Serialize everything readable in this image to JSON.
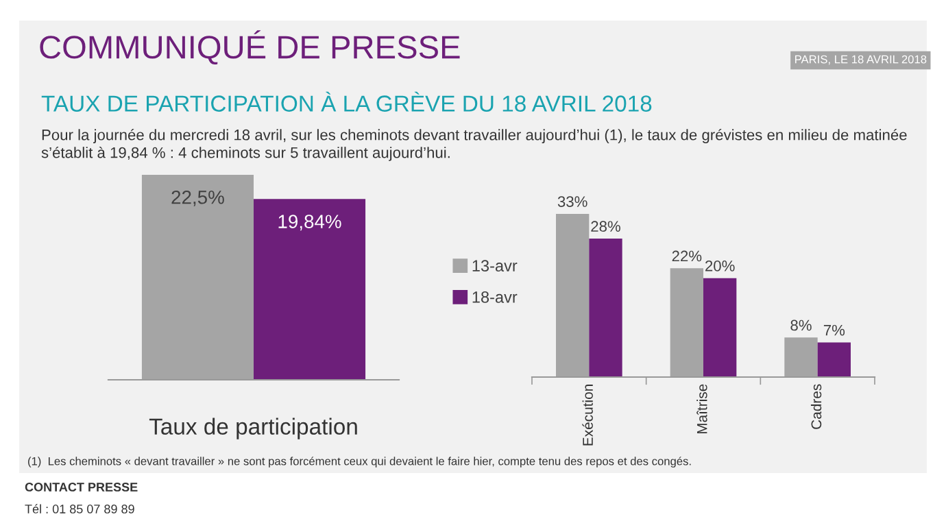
{
  "chart_data": [
    {
      "type": "bar",
      "title": "TAUX DE PARTICIPATION À LA GRÈVE DU 18 AVRIL 2018",
      "subtitle": "Pour la journée du mercredi 18 avril, sur les cheminots devant travailler aujourd’hui (1), le taux de grévistes en milieu de matinée s’établit à 19,84 % : 4 cheminots sur 5 travaillent aujourd’hui.",
      "annotations": [
        "COMMUNIQUÉ DE PRESSE",
        "PARIS, LE 18 AVRIL 2018",
        "(1)  Les cheminots « devant travailler » ne sont pas forcément ceux qui devaient le faire hier, compte tenu des repos et des congés.",
        "CONTACT PRESSE",
        "Tél : 01 85 07 89 89"
      ],
      "xlabel": "Taux de participation",
      "categories": [
        null,
        null
      ],
      "values": [
        22.5,
        19.84
      ],
      "colors": [
        "#a5a5a5",
        "#6d1f7a"
      ],
      "value_labels": [
        "22,5%",
        "19,84%"
      ],
      "legend": false
    },
    {
      "type": "bar",
      "categories": [
        "Exécution",
        "Maîtrise",
        "Cadres"
      ],
      "series": [
        {
          "name": "13-avr",
          "color": "#a5a5a5",
          "values": [
            33,
            22,
            8
          ],
          "value_labels": [
            "33%",
            "22%",
            "8%"
          ]
        },
        {
          "name": "18-avr",
          "color": "#6d1f7a",
          "values": [
            28,
            20,
            7
          ],
          "value_labels": [
            "28%",
            "20%",
            "7%"
          ]
        }
      ],
      "legend": "left"
    }
  ]
}
